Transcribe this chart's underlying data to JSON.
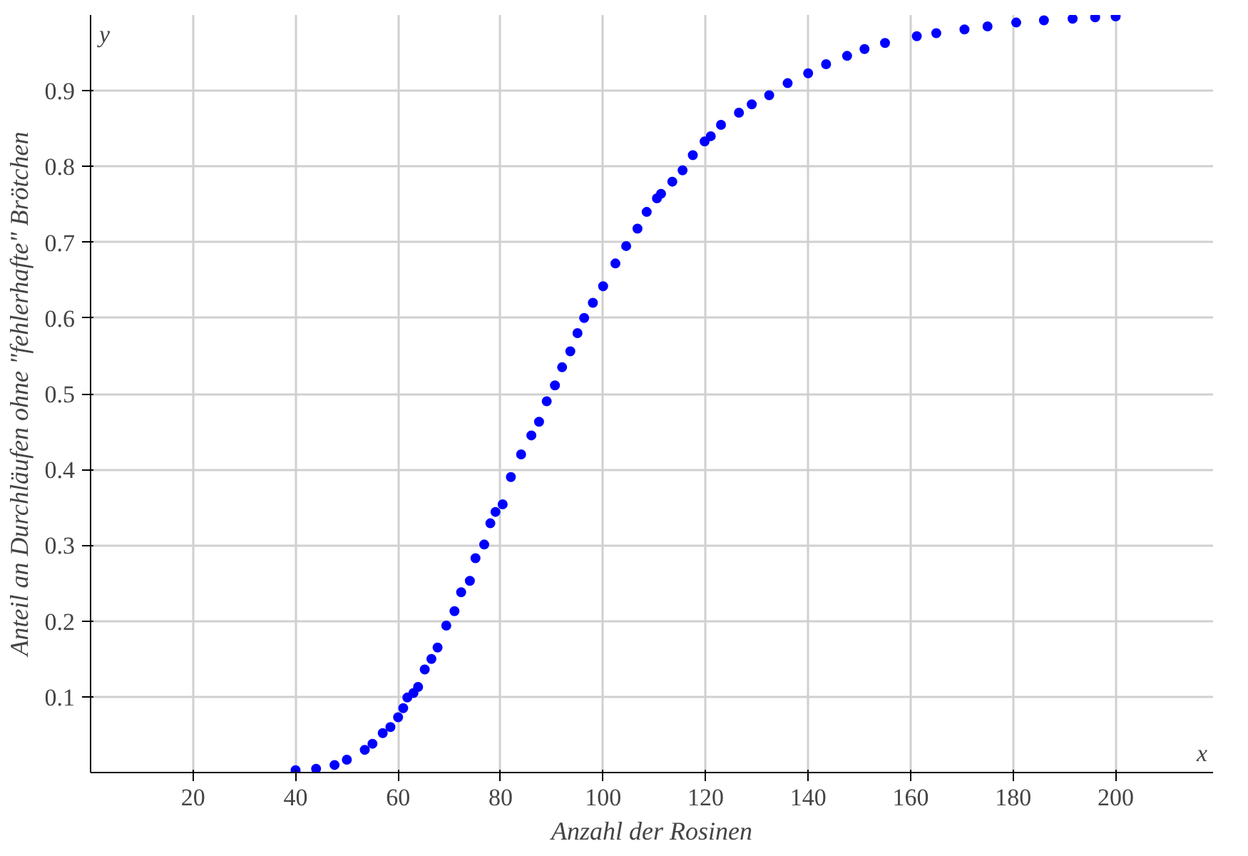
{
  "chart_data": {
    "type": "scatter",
    "xlabel": "Anzahl der Rosinen",
    "ylabel": "Anteil an Durchläufen ohne \"fehlerhafte\" Brötchen",
    "annotations": [
      "x",
      "y"
    ],
    "x": [
      40,
      44,
      47.6,
      50,
      53.5,
      55,
      57,
      58.5,
      60,
      61,
      61.8,
      63,
      63.9,
      65.2,
      66.5,
      67.7,
      69.4,
      71,
      72.3,
      74,
      75.1,
      76.8,
      78,
      79,
      80.4,
      82,
      84,
      86,
      87.5,
      89,
      90.6,
      92,
      93.6,
      95,
      96.3,
      98,
      100,
      102.4,
      104.5,
      106.7,
      108.5,
      110.5,
      111.3,
      113.5,
      115.5,
      117.5,
      119.8,
      121,
      123,
      126.5,
      129,
      132.4,
      136,
      140,
      143.5,
      147.6,
      151,
      155,
      161.2,
      165,
      170.5,
      175,
      180.6,
      186,
      191.6,
      196,
      200
    ],
    "values": [
      0.003,
      0.005,
      0.01,
      0.017,
      0.03,
      0.038,
      0.052,
      0.06,
      0.073,
      0.085,
      0.099,
      0.105,
      0.113,
      0.136,
      0.15,
      0.165,
      0.194,
      0.213,
      0.238,
      0.253,
      0.283,
      0.301,
      0.329,
      0.344,
      0.354,
      0.39,
      0.42,
      0.445,
      0.463,
      0.49,
      0.511,
      0.535,
      0.556,
      0.58,
      0.6,
      0.62,
      0.642,
      0.672,
      0.695,
      0.718,
      0.74,
      0.758,
      0.764,
      0.78,
      0.795,
      0.815,
      0.833,
      0.84,
      0.855,
      0.871,
      0.882,
      0.894,
      0.91,
      0.923,
      0.935,
      0.946,
      0.955,
      0.963,
      0.972,
      0.976,
      0.981,
      0.985,
      0.99,
      0.993,
      0.995,
      0.997,
      0.998
    ],
    "color": "#0000ff",
    "marker": "circle",
    "grid": true,
    "xlim": [
      0,
      219
    ],
    "ylim": [
      0,
      1.0
    ],
    "xticks": [
      20,
      40,
      60,
      80,
      100,
      120,
      140,
      160,
      180,
      200
    ],
    "yticks": [
      0.1,
      0.2,
      0.3,
      0.4,
      0.5,
      0.6,
      0.7,
      0.8,
      0.9
    ]
  }
}
